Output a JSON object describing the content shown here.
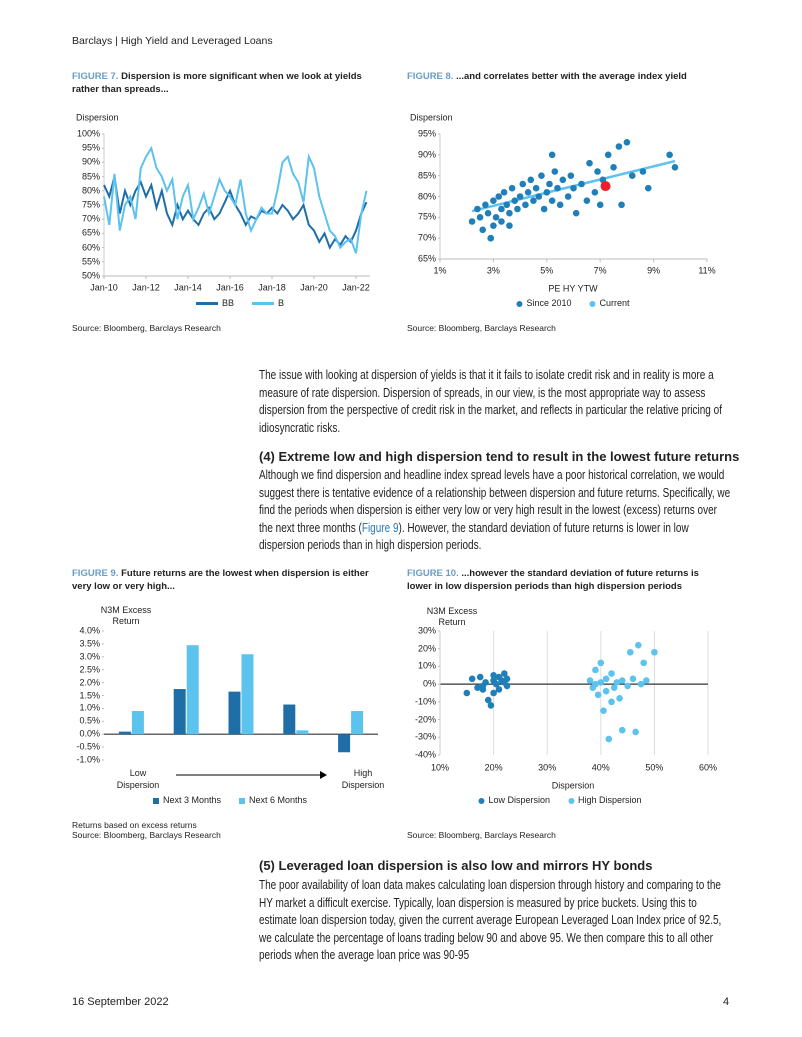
{
  "header": {
    "title": "Barclays | High Yield and Leveraged Loans"
  },
  "figures": [
    {
      "label": "FIGURE 7.",
      "caption": "Dispersion is more significant when we look at yields rather than spreads...",
      "source": "Source: Bloomberg, Barclays Research"
    },
    {
      "label": "FIGURE 8.",
      "caption": "...and correlates better with the average index yield",
      "source": "Source: Bloomberg, Barclays Research"
    },
    {
      "label": "FIGURE 9.",
      "caption": "Future returns are the lowest when dispersion is either very low or very high...",
      "note": "Returns based on excess returns",
      "source": "Source: Bloomberg, Barclays Research"
    },
    {
      "label": "FIGURE 10.",
      "caption": "...however the standard deviation of future returns is lower in low dispersion periods than high dispersion periods",
      "source": "Source: Bloomberg, Barclays Research"
    }
  ],
  "body": {
    "paragraph_1": "The issue with looking at dispersion of yields is that it it fails to isolate credit risk and in reality is more a measure of rate dispersion. Dispersion of spreads, in our view, is the most appropriate way to assess dispersion from the perspective of credit risk in the market, and reflects in particular the relative pricing of idiosyncratic risks.",
    "heading_1": "(4) Extreme low and high dispersion tend to result in the lowest future returns",
    "paragraph_2": {
      "before": "Although we find dispersion and headline index spread levels have a poor historical correlation, we would suggest there is tentative evidence of a relationship between dispersion and future returns. Specifically, we find the periods when dispersion is either very low or very high result in the lowest (excess) returns over the next three months (",
      "link": "Figure 9",
      "after": "). However, the standard deviation of future returns is lower in low dispersion periods than in high dispersion periods."
    },
    "heading_2": "(5) Leveraged loan dispersion is also low and mirrors HY bonds",
    "paragraph_3": "The poor availability of loan data makes calculating loan dispersion through history and comparing to the HY market a difficult exercise. Typically, loan dispersion is measured by price buckets. Using this to estimate loan dispersion today, given the current average European Leveraged Loan Index price of 92.5, we calculate the percentage of loans trading below 90 and above 95. We then compare this to all other periods when the average loan price was 90-95"
  },
  "footer": {
    "date": "16 September 2022",
    "page": "4"
  },
  "chart_data": [
    {
      "type": "line",
      "ylabel": "Dispersion",
      "x": [
        "2010-01",
        "2010-04",
        "2010-07",
        "2010-10",
        "2011-01",
        "2011-04",
        "2011-07",
        "2011-10",
        "2012-01",
        "2012-04",
        "2012-07",
        "2012-10",
        "2013-01",
        "2013-04",
        "2013-07",
        "2013-10",
        "2014-01",
        "2014-04",
        "2014-07",
        "2014-10",
        "2015-01",
        "2015-04",
        "2015-07",
        "2015-10",
        "2016-01",
        "2016-04",
        "2016-07",
        "2016-10",
        "2017-01",
        "2017-04",
        "2017-07",
        "2017-10",
        "2018-01",
        "2018-04",
        "2018-07",
        "2018-10",
        "2019-01",
        "2019-04",
        "2019-07",
        "2019-10",
        "2020-01",
        "2020-04",
        "2020-07",
        "2020-10",
        "2021-01",
        "2021-04",
        "2021-07",
        "2021-10",
        "2022-01",
        "2022-04",
        "2022-07"
      ],
      "series": [
        {
          "name": "BB",
          "color": "#1f6ea8",
          "values": [
            82,
            78,
            85,
            72,
            80,
            75,
            80,
            83,
            78,
            82,
            74,
            80,
            72,
            68,
            75,
            70,
            73,
            70,
            68,
            72,
            74,
            70,
            72,
            76,
            80,
            75,
            72,
            68,
            71,
            70,
            73,
            72,
            74,
            72,
            75,
            73,
            70,
            72,
            75,
            68,
            66,
            62,
            65,
            60,
            63,
            61,
            64,
            62,
            66,
            72,
            76
          ]
        },
        {
          "name": "B",
          "color": "#5cc2ee",
          "values": [
            78,
            68,
            86,
            66,
            75,
            78,
            70,
            88,
            92,
            95,
            88,
            85,
            80,
            84,
            70,
            78,
            82,
            70,
            74,
            79,
            72,
            78,
            84,
            80,
            78,
            75,
            84,
            72,
            66,
            70,
            74,
            72,
            72,
            80,
            90,
            92,
            86,
            83,
            76,
            92,
            88,
            78,
            72,
            66,
            64,
            60,
            62,
            63,
            58,
            72,
            80
          ]
        }
      ],
      "xlim": [
        "2010-01",
        "2022-09"
      ],
      "xticks": [
        {
          "value": "2010-01",
          "label": "Jan-10"
        },
        {
          "value": "2012-01",
          "label": "Jan-12"
        },
        {
          "value": "2014-01",
          "label": "Jan-14"
        },
        {
          "value": "2016-01",
          "label": "Jan-16"
        },
        {
          "value": "2018-01",
          "label": "Jan-18"
        },
        {
          "value": "2020-01",
          "label": "Jan-20"
        },
        {
          "value": "2022-01",
          "label": "Jan-22"
        }
      ],
      "ylim": [
        50,
        100
      ],
      "yticks": [
        {
          "value": 50,
          "label": "50%"
        },
        {
          "value": 55,
          "label": "55%"
        },
        {
          "value": 60,
          "label": "60%"
        },
        {
          "value": 65,
          "label": "65%"
        },
        {
          "value": 70,
          "label": "70%"
        },
        {
          "value": 75,
          "label": "75%"
        },
        {
          "value": 80,
          "label": "80%"
        },
        {
          "value": 85,
          "label": "85%"
        },
        {
          "value": 90,
          "label": "90%"
        },
        {
          "value": 95,
          "label": "95%"
        },
        {
          "value": 100,
          "label": "100%"
        }
      ],
      "legend": "bottom"
    },
    {
      "type": "scatter",
      "ylabel": "Dispersion",
      "xlabel": "PE HY YTW",
      "series": [
        {
          "name": "Since 2010",
          "color": "#1f7fb8",
          "x": [
            2.2,
            2.4,
            2.5,
            2.6,
            2.7,
            2.8,
            2.9,
            3.0,
            3.0,
            3.1,
            3.2,
            3.3,
            3.3,
            3.4,
            3.5,
            3.6,
            3.7,
            3.8,
            3.9,
            4.0,
            4.1,
            4.2,
            4.3,
            4.4,
            4.5,
            4.6,
            4.7,
            4.8,
            4.9,
            5.0,
            5.1,
            5.2,
            5.3,
            5.4,
            5.5,
            5.6,
            5.8,
            5.9,
            6.0,
            6.1,
            6.3,
            6.5,
            6.6,
            6.8,
            6.9,
            7.0,
            7.1,
            7.3,
            7.5,
            7.7,
            7.8,
            8.0,
            8.2,
            8.6,
            8.8,
            9.6,
            9.8,
            2.9,
            3.6,
            5.2
          ],
          "values": [
            74,
            77,
            75,
            72,
            78,
            76,
            70,
            73,
            79,
            75,
            80,
            77,
            74,
            81,
            78,
            76,
            82,
            79,
            77,
            80,
            83,
            78,
            81,
            84,
            79,
            82,
            80,
            85,
            77,
            81,
            83,
            79,
            86,
            82,
            78,
            84,
            80,
            85,
            82,
            76,
            83,
            79,
            88,
            81,
            86,
            78,
            84,
            90,
            87,
            92,
            78,
            93,
            85,
            86,
            82,
            90,
            87,
            70,
            73,
            90
          ]
        },
        {
          "name": "Current",
          "color": "#5cc2ee",
          "marker_color": "#e8202a",
          "x": [
            7.2
          ],
          "values": [
            82.5
          ]
        }
      ],
      "trendline": {
        "color": "#5cc2ee",
        "x": [
          2.2,
          9.8
        ],
        "values": [
          76.5,
          88.5
        ]
      },
      "xlim": [
        1,
        11
      ],
      "xticks": [
        {
          "value": 1,
          "label": "1%"
        },
        {
          "value": 3,
          "label": "3%"
        },
        {
          "value": 5,
          "label": "5%"
        },
        {
          "value": 7,
          "label": "7%"
        },
        {
          "value": 9,
          "label": "9%"
        },
        {
          "value": 11,
          "label": "11%"
        }
      ],
      "ylim": [
        65,
        95
      ],
      "yticks": [
        {
          "value": 65,
          "label": "65%"
        },
        {
          "value": 70,
          "label": "70%"
        },
        {
          "value": 75,
          "label": "75%"
        },
        {
          "value": 80,
          "label": "80%"
        },
        {
          "value": 85,
          "label": "85%"
        },
        {
          "value": 90,
          "label": "90%"
        },
        {
          "value": 95,
          "label": "95%"
        }
      ],
      "legend": "bottom"
    },
    {
      "type": "bar",
      "ylabel": "N3M Excess Return",
      "xlabel_left": "Low Dispersion",
      "xlabel_right": "High Dispersion",
      "categories": [
        null,
        null,
        null,
        null,
        null
      ],
      "series": [
        {
          "name": "Next 3 Months",
          "color": "#1f6ea8",
          "values": [
            0.1,
            1.75,
            1.65,
            1.15,
            -0.7
          ]
        },
        {
          "name": "Next 6 Months",
          "color": "#5cc2ee",
          "values": [
            0.9,
            3.45,
            3.1,
            0.15,
            0.9
          ]
        }
      ],
      "ylim": [
        -1,
        4
      ],
      "yticks": [
        {
          "value": -1,
          "label": "-1.0%"
        },
        {
          "value": -0.5,
          "label": "-0.5%"
        },
        {
          "value": 0,
          "label": "0.0%"
        },
        {
          "value": 0.5,
          "label": "0.5%"
        },
        {
          "value": 1,
          "label": "1.0%"
        },
        {
          "value": 1.5,
          "label": "1.5%"
        },
        {
          "value": 2,
          "label": "2.0%"
        },
        {
          "value": 2.5,
          "label": "2.5%"
        },
        {
          "value": 3,
          "label": "3.0%"
        },
        {
          "value": 3.5,
          "label": "3.5%"
        },
        {
          "value": 4,
          "label": "4.0%"
        }
      ],
      "legend": "bottom"
    },
    {
      "type": "scatter",
      "ylabel": "N3M Excess Return",
      "xlabel": "Dispersion",
      "series": [
        {
          "name": "Low Dispersion",
          "color": "#1f7fb8",
          "x": [
            15,
            16,
            17,
            17.5,
            18,
            18.5,
            19,
            19.5,
            20,
            20,
            20.5,
            21,
            21,
            21.5,
            22,
            22,
            22.5,
            22.5,
            20,
            18
          ],
          "values": [
            -5,
            3,
            -2,
            4,
            -3,
            1,
            -9,
            -12,
            2,
            -5,
            0,
            4,
            -3,
            2,
            6,
            1,
            -1,
            3,
            5,
            -1
          ]
        },
        {
          "name": "High Dispersion",
          "color": "#5cc2ee",
          "x": [
            38,
            38.5,
            39,
            39.5,
            40,
            40,
            40.5,
            41,
            41,
            41.5,
            42,
            42.5,
            43,
            43.5,
            44,
            44,
            45,
            45.5,
            46,
            46.5,
            47,
            47.5,
            48,
            48.5,
            50,
            42,
            39
          ],
          "values": [
            2,
            -2,
            8,
            -6,
            12,
            1,
            -15,
            -4,
            3,
            -31,
            6,
            -2,
            1,
            -8,
            -26,
            2,
            -1,
            18,
            3,
            -27,
            22,
            0,
            12,
            2,
            18,
            -10,
            0
          ]
        }
      ],
      "xlim": [
        10,
        60
      ],
      "xticks": [
        {
          "value": 10,
          "label": "10%"
        },
        {
          "value": 20,
          "label": "20%"
        },
        {
          "value": 30,
          "label": "30%"
        },
        {
          "value": 40,
          "label": "40%"
        },
        {
          "value": 50,
          "label": "50%"
        },
        {
          "value": 60,
          "label": "60%"
        }
      ],
      "xgrid": true,
      "ylim": [
        -40,
        30
      ],
      "yticks": [
        {
          "value": -40,
          "label": "-40%"
        },
        {
          "value": -30,
          "label": "-30%"
        },
        {
          "value": -20,
          "label": "-20%"
        },
        {
          "value": -10,
          "label": "-10%"
        },
        {
          "value": 0,
          "label": "0%"
        },
        {
          "value": 10,
          "label": "10%"
        },
        {
          "value": 20,
          "label": "20%"
        },
        {
          "value": 30,
          "label": "30%"
        }
      ],
      "legend": "bottom"
    }
  ]
}
